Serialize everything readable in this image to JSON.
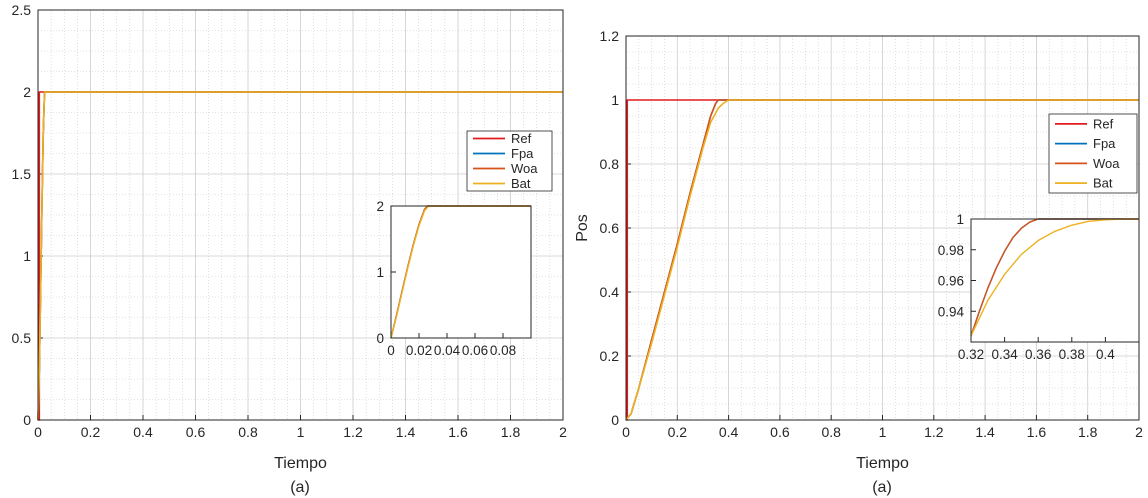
{
  "chart_data": [
    {
      "type": "line",
      "panel": "left",
      "title": "",
      "xlabel": "Tiempo",
      "ylabel": "",
      "caption": "(a)",
      "xlim": [
        0,
        2
      ],
      "ylim": [
        0,
        2.5
      ],
      "xticks": [
        "0",
        "0.2",
        "0.4",
        "0.6",
        "0.8",
        "1",
        "1.2",
        "1.4",
        "1.6",
        "1.8",
        "2"
      ],
      "yticks": [
        "0",
        "0.5",
        "1",
        "1.5",
        "2",
        "2.5"
      ],
      "grid": true,
      "minor_grid": true,
      "legend_position": "right",
      "series": [
        {
          "name": "Ref",
          "color": "#e31a1c",
          "x": [
            0,
            0.005,
            0.005,
            2
          ],
          "y": [
            0,
            0,
            2,
            2
          ]
        },
        {
          "name": "Fpa",
          "color": "#0072bd",
          "x": [
            0,
            0.005,
            0.01,
            0.015,
            0.02,
            0.025,
            0.03,
            2
          ],
          "y": [
            0,
            0.3,
            0.8,
            1.3,
            1.75,
            2.0,
            2.0,
            2.0
          ]
        },
        {
          "name": "Woa",
          "color": "#d95319",
          "x": [
            0,
            0.005,
            0.01,
            0.015,
            0.02,
            0.025,
            0.03,
            2
          ],
          "y": [
            0,
            0.3,
            0.8,
            1.3,
            1.75,
            2.0,
            2.0,
            2.0
          ]
        },
        {
          "name": "Bat",
          "color": "#edb120",
          "x": [
            0,
            0.005,
            0.01,
            0.015,
            0.02,
            0.025,
            0.03,
            2
          ],
          "y": [
            0,
            0.3,
            0.8,
            1.3,
            1.75,
            2.0,
            2.0,
            2.0
          ]
        }
      ],
      "inset": {
        "xlim": [
          0,
          0.1
        ],
        "ylim": [
          0,
          2
        ],
        "xticks": [
          "0",
          "0.02",
          "0.04",
          "0.06",
          "0.08"
        ],
        "yticks": [
          "0",
          "1",
          "2"
        ],
        "series": [
          {
            "name": "Fpa",
            "color": "#0072bd",
            "x": [
              0,
              0.004,
              0.008,
              0.012,
              0.016,
              0.02,
              0.024,
              0.026,
              0.1
            ],
            "y": [
              0,
              0.35,
              0.72,
              1.08,
              1.42,
              1.72,
              1.95,
              2.0,
              2.0
            ]
          },
          {
            "name": "Woa",
            "color": "#d95319",
            "x": [
              0,
              0.004,
              0.008,
              0.012,
              0.016,
              0.02,
              0.024,
              0.026,
              0.1
            ],
            "y": [
              0,
              0.35,
              0.72,
              1.08,
              1.42,
              1.72,
              1.95,
              2.0,
              2.0
            ]
          },
          {
            "name": "Bat",
            "color": "#edb120",
            "x": [
              0,
              0.004,
              0.008,
              0.012,
              0.016,
              0.02,
              0.024,
              0.027,
              0.1
            ],
            "y": [
              0,
              0.33,
              0.7,
              1.06,
              1.4,
              1.7,
              1.93,
              2.0,
              2.0
            ]
          }
        ]
      }
    },
    {
      "type": "line",
      "panel": "right",
      "title": "",
      "xlabel": "Tiempo",
      "ylabel": "Pos",
      "caption": "(a)",
      "xlim": [
        0,
        2
      ],
      "ylim": [
        0,
        1.2
      ],
      "xticks": [
        "0",
        "0.2",
        "0.4",
        "0.6",
        "0.8",
        "1",
        "1.2",
        "1.4",
        "1.6",
        "1.8",
        "2"
      ],
      "yticks": [
        "0",
        "0.2",
        "0.4",
        "0.6",
        "0.8",
        "1",
        "1.2"
      ],
      "grid": true,
      "minor_grid": true,
      "legend_position": "right",
      "series": [
        {
          "name": "Ref",
          "color": "#e31a1c",
          "x": [
            0,
            0.005,
            0.005,
            2
          ],
          "y": [
            0,
            0,
            1,
            1
          ]
        },
        {
          "name": "Fpa",
          "color": "#0072bd",
          "x": [
            0,
            0.02,
            0.05,
            0.1,
            0.15,
            0.2,
            0.25,
            0.3,
            0.33,
            0.35,
            0.36,
            2
          ],
          "y": [
            0,
            0.02,
            0.1,
            0.25,
            0.4,
            0.55,
            0.71,
            0.86,
            0.95,
            0.99,
            1.0,
            1.0
          ]
        },
        {
          "name": "Woa",
          "color": "#d95319",
          "x": [
            0,
            0.02,
            0.05,
            0.1,
            0.15,
            0.2,
            0.25,
            0.3,
            0.33,
            0.35,
            0.36,
            2
          ],
          "y": [
            0,
            0.02,
            0.1,
            0.25,
            0.4,
            0.55,
            0.71,
            0.86,
            0.95,
            0.99,
            1.0,
            1.0
          ]
        },
        {
          "name": "Bat",
          "color": "#edb120",
          "x": [
            0,
            0.02,
            0.05,
            0.1,
            0.15,
            0.2,
            0.25,
            0.3,
            0.33,
            0.36,
            0.38,
            0.4,
            2
          ],
          "y": [
            0,
            0.02,
            0.1,
            0.24,
            0.39,
            0.54,
            0.7,
            0.85,
            0.93,
            0.975,
            0.99,
            1.0,
            1.0
          ]
        }
      ],
      "inset": {
        "xlim": [
          0.32,
          0.42
        ],
        "ylim": [
          0.92,
          1.0
        ],
        "xticks": [
          "0.32",
          "0.34",
          "0.36",
          "0.38",
          "0.4"
        ],
        "yticks": [
          "0.94",
          "0.96",
          "0.98",
          "1"
        ],
        "series": [
          {
            "name": "Fpa",
            "color": "#0072bd",
            "x": [
              0.32,
              0.325,
              0.33,
              0.335,
              0.34,
              0.345,
              0.35,
              0.355,
              0.36,
              0.365,
              0.37,
              0.38,
              0.42
            ],
            "y": [
              0.924,
              0.94,
              0.955,
              0.968,
              0.979,
              0.988,
              0.994,
              0.998,
              1.0,
              1.0005,
              1.0,
              1.0,
              1.0
            ]
          },
          {
            "name": "Woa",
            "color": "#d95319",
            "x": [
              0.32,
              0.325,
              0.33,
              0.335,
              0.34,
              0.345,
              0.35,
              0.355,
              0.36,
              0.365,
              0.37,
              0.38,
              0.42
            ],
            "y": [
              0.924,
              0.94,
              0.955,
              0.968,
              0.979,
              0.988,
              0.994,
              0.998,
              1.0,
              1.0005,
              1.0,
              1.0,
              1.0
            ]
          },
          {
            "name": "Bat",
            "color": "#edb120",
            "x": [
              0.32,
              0.33,
              0.34,
              0.35,
              0.36,
              0.37,
              0.38,
              0.39,
              0.4,
              0.41,
              0.42
            ],
            "y": [
              0.924,
              0.947,
              0.964,
              0.977,
              0.986,
              0.992,
              0.996,
              0.9985,
              0.9995,
              1.0,
              1.0
            ]
          }
        ]
      }
    }
  ]
}
